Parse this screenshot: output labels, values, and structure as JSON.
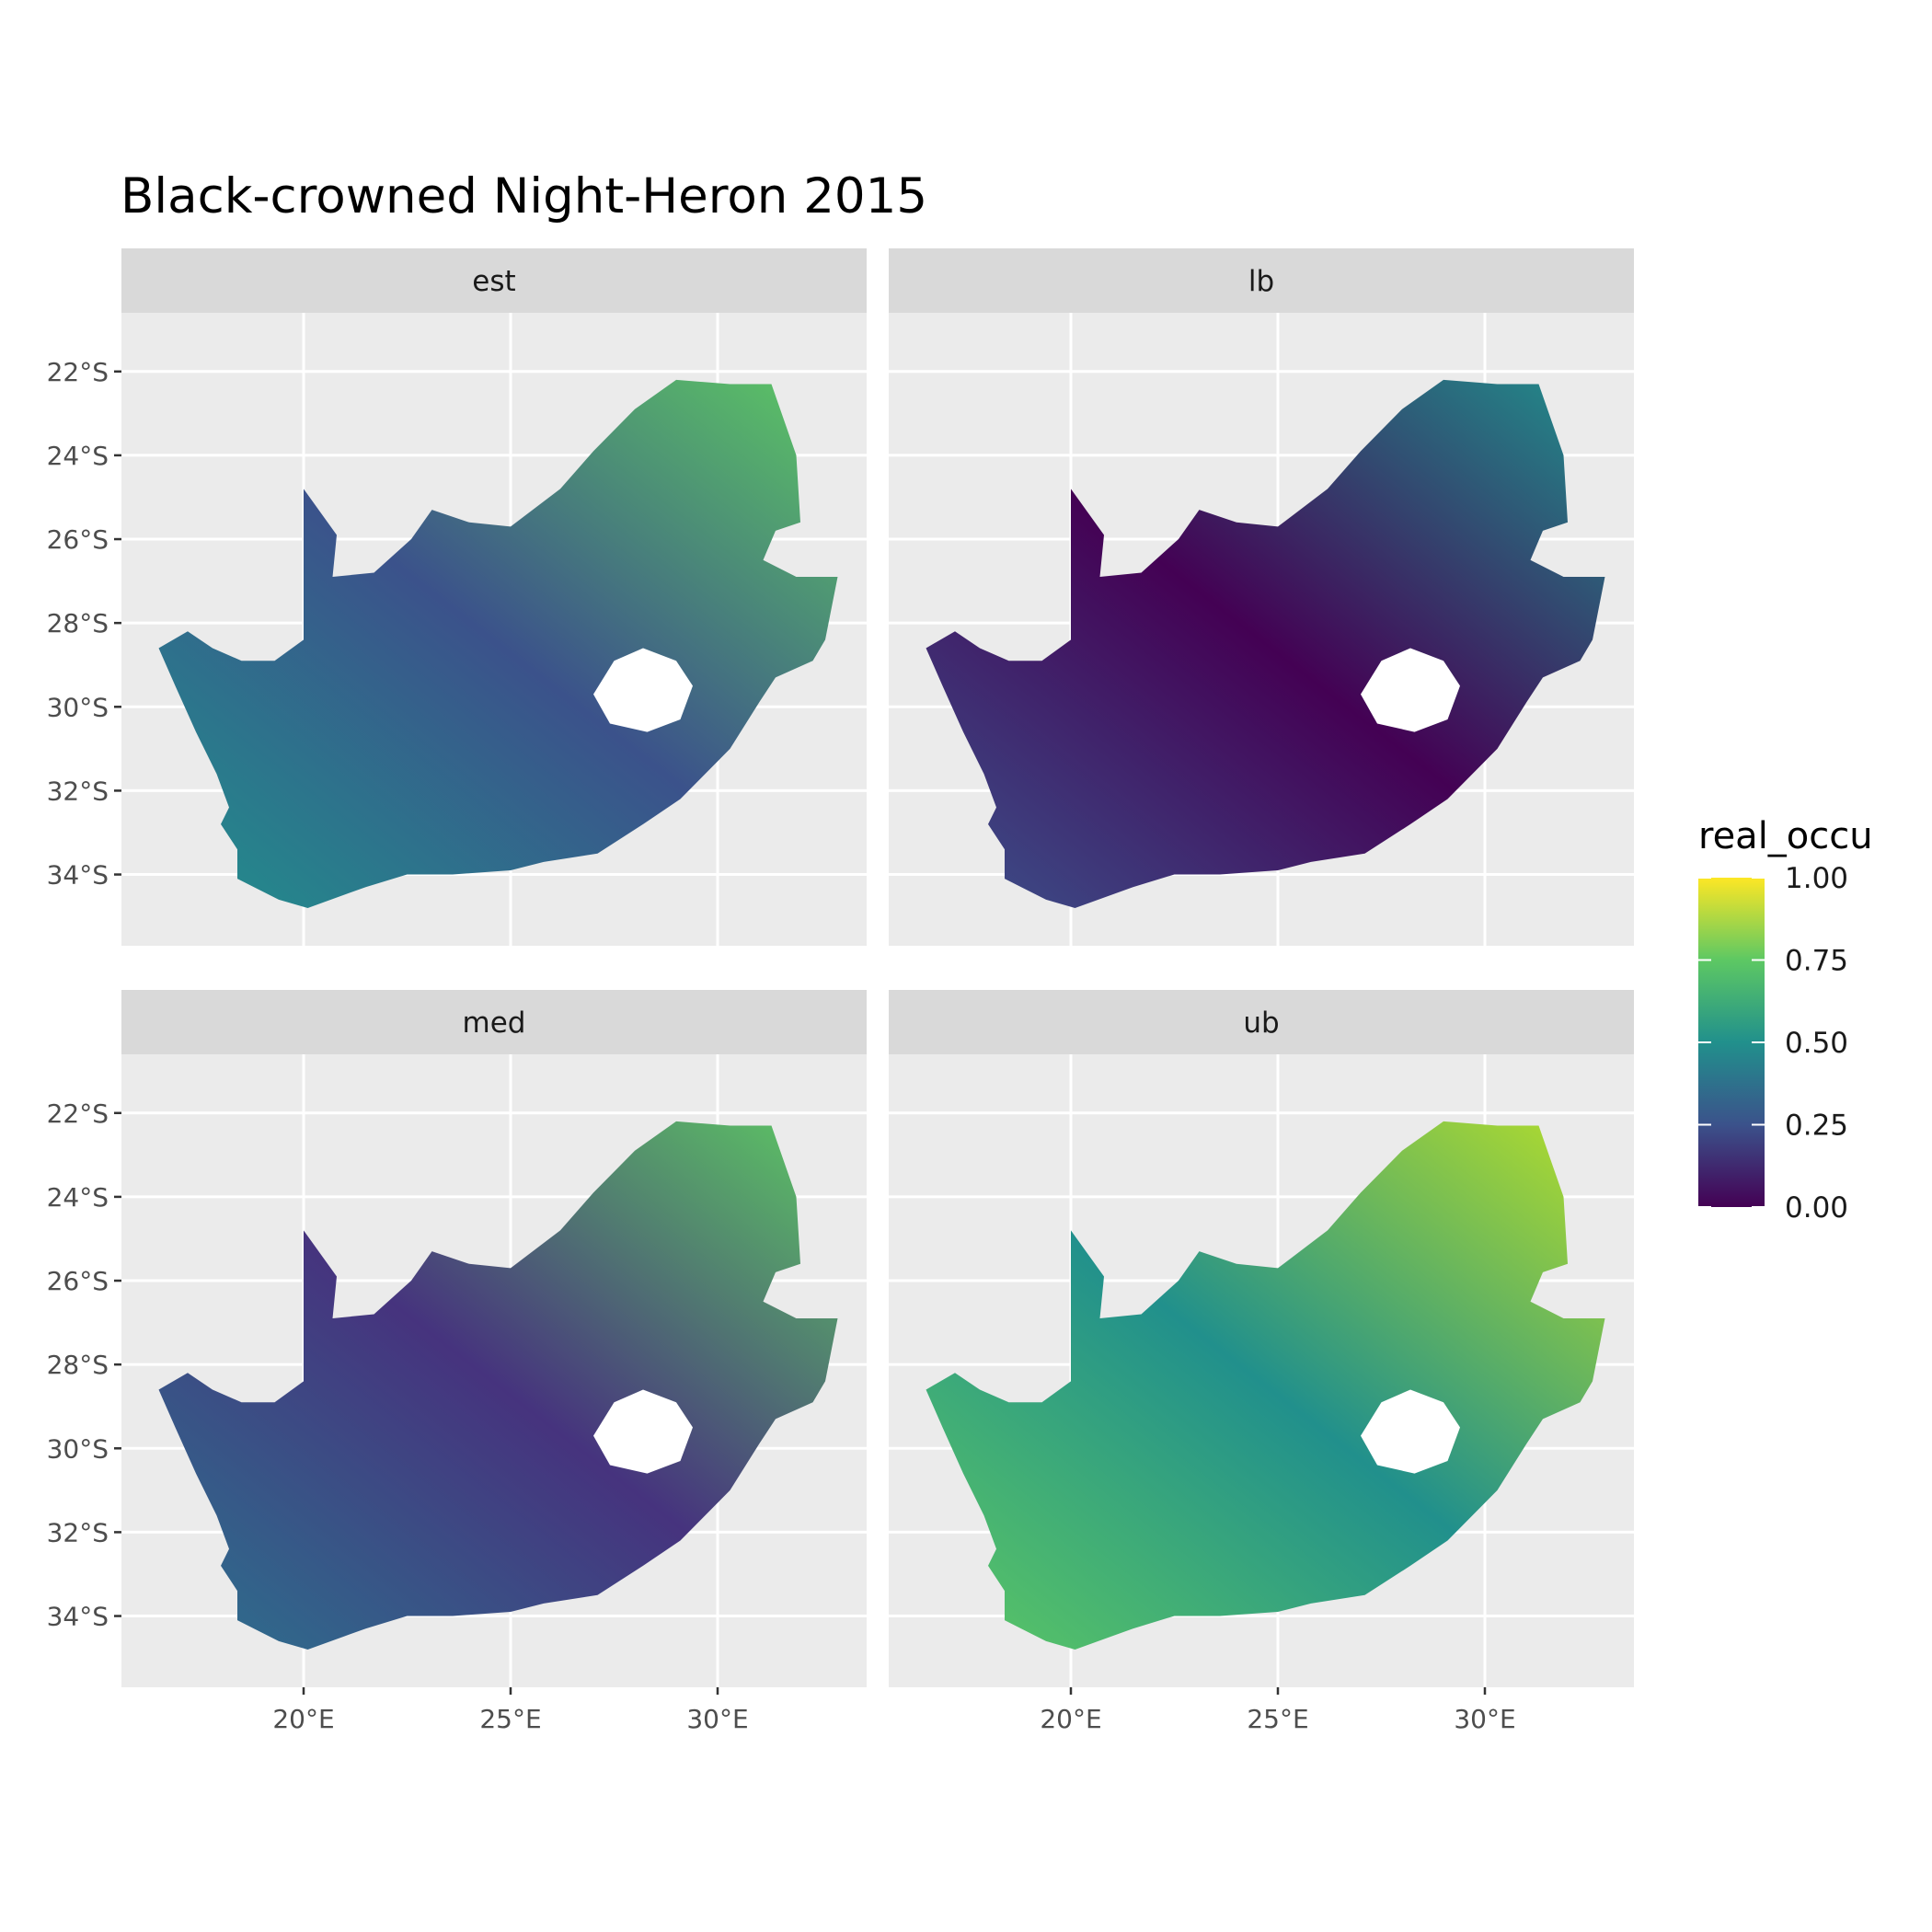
{
  "title": "Black-crowned Night-Heron 2015",
  "panels": [
    {
      "label": "est"
    },
    {
      "label": "lb"
    },
    {
      "label": "med"
    },
    {
      "label": "ub"
    }
  ],
  "axes": {
    "x_ticks": [
      "20°E",
      "25°E",
      "30°E"
    ],
    "x_values": [
      20,
      25,
      30
    ],
    "y_ticks": [
      "22°S",
      "24°S",
      "26°S",
      "28°S",
      "30°S",
      "32°S",
      "34°S"
    ],
    "y_values": [
      -22,
      -24,
      -26,
      -28,
      -30,
      -32,
      -34
    ],
    "x_range": [
      15.6,
      33.6
    ],
    "y_range": [
      -35.7,
      -20.6
    ]
  },
  "legend": {
    "title": "real_occu",
    "ticks": [
      "1.00",
      "0.75",
      "0.50",
      "0.25",
      "0.00"
    ],
    "tick_values": [
      1.0,
      0.75,
      0.5,
      0.25,
      0.0
    ],
    "palette": "viridis"
  },
  "colors": {
    "panel_bg": "#ebebeb",
    "strip_bg": "#d9d9d9",
    "grid": "#ffffff",
    "viridis": [
      "#440154",
      "#3b528b",
      "#21908c",
      "#5dc863",
      "#fde725"
    ]
  }
}
